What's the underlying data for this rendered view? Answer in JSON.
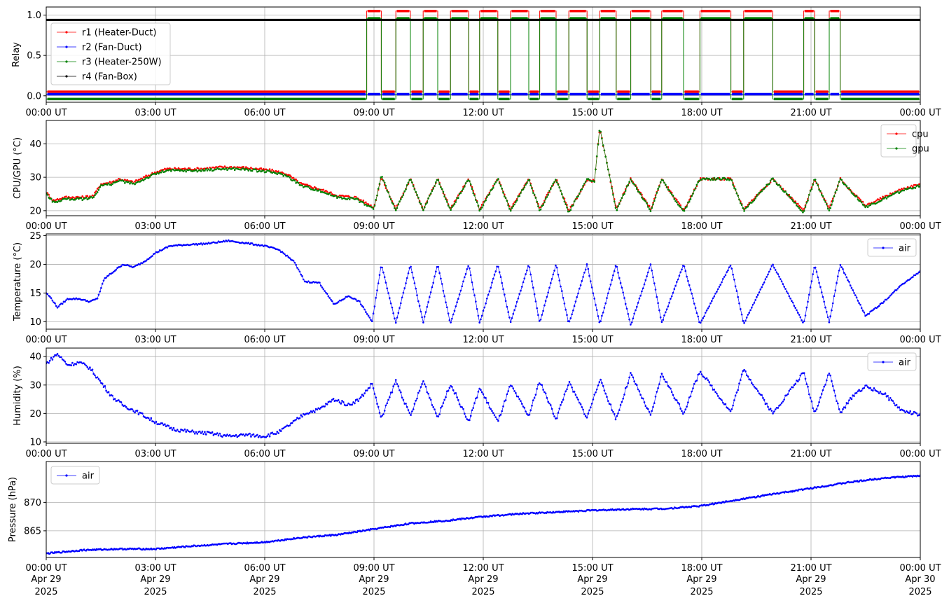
{
  "figure": {
    "time_axis": {
      "tick_labels": [
        "00:00 UT",
        "03:00 UT",
        "06:00 UT",
        "09:00 UT",
        "12:00 UT",
        "15:00 UT",
        "18:00 UT",
        "21:00 UT",
        "00:00 UT"
      ],
      "date_row": [
        "Apr 29",
        "Apr 29",
        "Apr 29",
        "Apr 29",
        "Apr 29",
        "Apr 29",
        "Apr 29",
        "Apr 29",
        "Apr 30"
      ],
      "year_row": [
        "2025",
        "2025",
        "2025",
        "2025",
        "2025",
        "2025",
        "2025",
        "2025",
        "2025"
      ]
    },
    "colors": {
      "r1": "#ff0000",
      "r2": "#0000ff",
      "r3": "#008000",
      "r4": "#000000",
      "cpu": "#ff0000",
      "gpu": "#008000",
      "air": "#0000ff",
      "grid": "#b0b0b0"
    }
  },
  "chart_data": [
    {
      "type": "line",
      "ylabel": "Relay",
      "ylim": [
        -0.08,
        1.1
      ],
      "yticks": [
        0.0,
        0.5,
        1.0
      ],
      "ytick_labels": [
        "0.0",
        "0.5",
        "1.0"
      ],
      "x_unit": "hours since 00:00 UT Apr 29 2025",
      "xlim": [
        0,
        24
      ],
      "grid": true,
      "legend_position": "center-left",
      "heater_on_intervals_hours": [
        [
          8.8,
          9.2
        ],
        [
          9.6,
          10.0
        ],
        [
          10.35,
          10.75
        ],
        [
          11.1,
          11.6
        ],
        [
          11.9,
          12.4
        ],
        [
          12.75,
          13.25
        ],
        [
          13.55,
          14.0
        ],
        [
          14.35,
          14.85
        ],
        [
          15.2,
          15.65
        ],
        [
          16.05,
          16.6
        ],
        [
          16.9,
          17.5
        ],
        [
          17.95,
          18.8
        ],
        [
          19.15,
          19.95
        ],
        [
          20.8,
          21.1
        ],
        [
          21.5,
          21.8
        ]
      ],
      "series": [
        {
          "name": "r1 (Heater-Duct)",
          "values_note": "",
          "level_off": 0.05,
          "level_on": 1.05
        },
        {
          "name": "r2 (Fan-Duct)",
          "level_off": 0.02,
          "level_on": 0.02
        },
        {
          "name": "r3 (Heater-250W)",
          "level_off": -0.04,
          "level_on": 0.96
        },
        {
          "name": "r4 (Fan-Box)",
          "level_off": 0.94,
          "level_on": 0.94
        }
      ]
    },
    {
      "type": "line",
      "ylabel": "CPU/GPU (°C)",
      "ylim": [
        18.5,
        47
      ],
      "yticks": [
        20,
        30,
        40
      ],
      "ytick_labels": [
        "20",
        "30",
        "40"
      ],
      "xlim": [
        0,
        24
      ],
      "grid": true,
      "legend_position": "top-right",
      "x": [
        0,
        0.2,
        0.5,
        1.0,
        1.3,
        1.5,
        1.8,
        2.0,
        2.4,
        2.8,
        3.0,
        3.3,
        3.7,
        4.2,
        4.8,
        5.3,
        5.8,
        6.2,
        6.6,
        7.0,
        7.5,
        8.0,
        8.5,
        9.0,
        9.2,
        9.6,
        10.0,
        10.35,
        10.75,
        11.1,
        11.6,
        11.9,
        12.4,
        12.75,
        13.25,
        13.55,
        14.0,
        14.35,
        14.85,
        15.05,
        15.2,
        15.65,
        16.05,
        16.6,
        16.9,
        17.5,
        17.95,
        18.8,
        19.15,
        19.95,
        20.8,
        21.1,
        21.5,
        21.8,
        22.5,
        23.0,
        23.5,
        24.0
      ],
      "series": [
        {
          "name": "cpu",
          "values": [
            25.5,
            23.0,
            24.0,
            24.0,
            24.5,
            28.0,
            28.5,
            29.5,
            28.5,
            30.5,
            31.5,
            32.5,
            32.5,
            32.5,
            33.0,
            33.0,
            32.5,
            32.0,
            31.0,
            28.0,
            26.5,
            24.5,
            24.0,
            21.0,
            30.0,
            20.5,
            29.5,
            20.5,
            29.5,
            20.5,
            29.5,
            20.5,
            29.5,
            20.5,
            29.5,
            20.5,
            29.5,
            20.0,
            29.0,
            29.0,
            44.5,
            20.5,
            29.5,
            20.5,
            29.5,
            20.0,
            29.5,
            29.5,
            20.5,
            29.5,
            20.0,
            29.5,
            20.5,
            29.5,
            21.5,
            24.0,
            26.5,
            28.0
          ]
        },
        {
          "name": "gpu",
          "values": [
            25.0,
            22.5,
            23.5,
            23.5,
            24.0,
            27.5,
            28.0,
            29.0,
            28.0,
            30.0,
            31.0,
            32.0,
            32.0,
            32.0,
            32.5,
            32.5,
            32.0,
            31.5,
            30.5,
            27.5,
            26.0,
            24.0,
            23.5,
            20.5,
            30.5,
            20.0,
            29.5,
            20.0,
            29.5,
            20.0,
            29.5,
            20.0,
            29.5,
            20.0,
            29.5,
            20.0,
            29.5,
            19.5,
            29.5,
            28.5,
            45.0,
            20.0,
            29.5,
            20.0,
            29.5,
            19.5,
            29.5,
            29.5,
            20.0,
            29.5,
            19.5,
            29.5,
            20.0,
            29.5,
            21.0,
            23.5,
            26.0,
            27.5
          ]
        }
      ]
    },
    {
      "type": "line",
      "ylabel": "Temperature (°C)",
      "ylim": [
        8.7,
        25.3
      ],
      "yticks": [
        10,
        15,
        20,
        25
      ],
      "ytick_labels": [
        "10",
        "15",
        "20",
        "25"
      ],
      "xlim": [
        0,
        24
      ],
      "grid": true,
      "legend_position": "top-right",
      "x": [
        0,
        0.15,
        0.3,
        0.6,
        0.9,
        1.2,
        1.4,
        1.6,
        1.9,
        2.1,
        2.4,
        2.7,
        3.0,
        3.4,
        3.8,
        4.4,
        5.0,
        5.6,
        6.0,
        6.4,
        6.8,
        7.1,
        7.5,
        7.9,
        8.3,
        8.6,
        8.95,
        9.2,
        9.6,
        10.0,
        10.35,
        10.75,
        11.1,
        11.6,
        11.9,
        12.4,
        12.75,
        13.25,
        13.55,
        14.0,
        14.35,
        14.85,
        15.2,
        15.65,
        16.05,
        16.6,
        16.9,
        17.5,
        17.95,
        18.8,
        19.15,
        19.95,
        20.8,
        21.1,
        21.5,
        21.8,
        22.5,
        23.0,
        23.5,
        24.0
      ],
      "series": [
        {
          "name": "air",
          "values": [
            15.0,
            14.0,
            12.5,
            14.0,
            14.0,
            13.5,
            14.0,
            17.5,
            19.0,
            20.0,
            19.5,
            20.5,
            22.0,
            23.2,
            23.4,
            23.6,
            24.1,
            23.6,
            23.2,
            22.5,
            20.5,
            17.0,
            16.8,
            13.0,
            14.5,
            13.5,
            10.0,
            20.0,
            9.8,
            20.0,
            9.8,
            20.0,
            9.6,
            20.0,
            9.8,
            20.0,
            9.8,
            20.0,
            9.8,
            20.0,
            9.6,
            20.0,
            9.6,
            20.0,
            9.4,
            20.0,
            9.8,
            20.0,
            9.6,
            20.0,
            9.6,
            20.0,
            9.6,
            20.0,
            9.8,
            20.0,
            11.0,
            13.5,
            16.5,
            18.8
          ]
        }
      ]
    },
    {
      "type": "line",
      "ylabel": "Humidity (%)",
      "ylim": [
        9.5,
        43
      ],
      "yticks": [
        10,
        20,
        30,
        40
      ],
      "ytick_labels": [
        "10",
        "20",
        "30",
        "40"
      ],
      "xlim": [
        0,
        24
      ],
      "grid": true,
      "legend_position": "top-right",
      "x": [
        0,
        0.3,
        0.6,
        0.9,
        1.2,
        1.5,
        1.8,
        2.1,
        2.5,
        3.0,
        3.5,
        4.0,
        4.5,
        5.0,
        5.5,
        6.0,
        6.4,
        6.8,
        7.1,
        7.5,
        7.9,
        8.3,
        8.6,
        8.95,
        9.2,
        9.6,
        10.0,
        10.35,
        10.75,
        11.1,
        11.6,
        11.9,
        12.4,
        12.75,
        13.25,
        13.55,
        14.0,
        14.35,
        14.85,
        15.2,
        15.65,
        16.05,
        16.6,
        16.9,
        17.5,
        17.95,
        18.8,
        19.15,
        19.95,
        20.8,
        21.1,
        21.5,
        21.8,
        22.2,
        22.5,
        23.0,
        23.5,
        24.0
      ],
      "series": [
        {
          "name": "air",
          "values": [
            37.5,
            41.0,
            37.0,
            38.0,
            36.0,
            31.0,
            26.0,
            23.0,
            20.5,
            17.0,
            14.5,
            13.5,
            13.0,
            12.0,
            12.5,
            12.0,
            13.5,
            17.0,
            20.0,
            21.5,
            25.0,
            23.0,
            25.0,
            30.5,
            18.0,
            31.5,
            19.0,
            31.5,
            18.5,
            30.5,
            17.0,
            29.0,
            17.0,
            30.0,
            19.0,
            31.5,
            18.0,
            31.0,
            18.5,
            32.0,
            18.0,
            34.0,
            19.0,
            34.0,
            20.0,
            35.0,
            20.5,
            35.5,
            20.0,
            34.5,
            20.0,
            34.5,
            20.0,
            27.0,
            29.5,
            27.0,
            21.0,
            19.5
          ]
        }
      ]
    },
    {
      "type": "line",
      "ylabel": "Pressure (hPa)",
      "ylim": [
        860.3,
        877.2
      ],
      "yticks": [
        865,
        870
      ],
      "ytick_labels": [
        "865",
        "870"
      ],
      "xlim": [
        0,
        24
      ],
      "grid": true,
      "legend_position": "top-left",
      "x": [
        0,
        1,
        2,
        3,
        4,
        5,
        6,
        7,
        8,
        9,
        10,
        11,
        12,
        13,
        14,
        15,
        16,
        17,
        18,
        19,
        20,
        21,
        22,
        23,
        24
      ],
      "series": [
        {
          "name": "air",
          "values": [
            861.0,
            861.6,
            861.8,
            861.8,
            862.3,
            862.7,
            863.0,
            863.8,
            864.3,
            865.3,
            866.3,
            866.8,
            867.5,
            868.0,
            868.3,
            868.6,
            868.8,
            868.9,
            869.4,
            870.5,
            871.5,
            872.5,
            873.5,
            874.3,
            874.7
          ]
        }
      ]
    }
  ]
}
